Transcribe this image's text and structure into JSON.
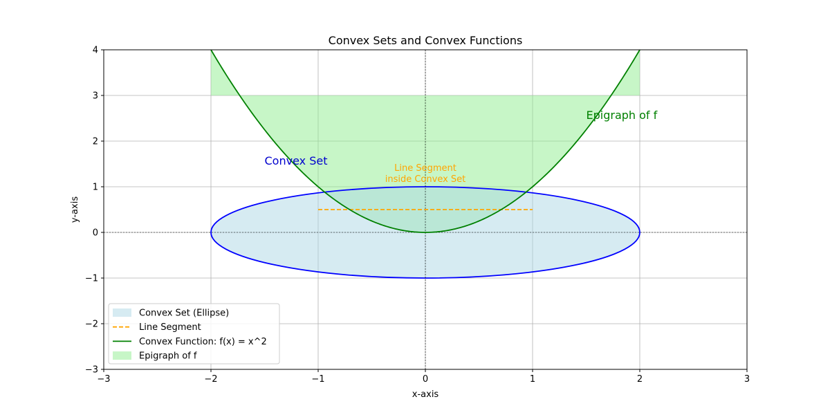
{
  "chart_data": {
    "type": "line",
    "title": "Convex Sets and Convex Functions",
    "xlabel": "x-axis",
    "ylabel": "y-axis",
    "xlim": [
      -3,
      3
    ],
    "ylim": [
      -3,
      4
    ],
    "x_ticks": [
      -3,
      -2,
      -1,
      0,
      1,
      2,
      3
    ],
    "x_tick_labels": [
      "−3",
      "−2",
      "−1",
      "0",
      "1",
      "2",
      "3"
    ],
    "y_ticks": [
      -3,
      -2,
      -1,
      0,
      1,
      2,
      3,
      4
    ],
    "y_tick_labels": [
      "−3",
      "−2",
      "−1",
      "0",
      "1",
      "2",
      "3",
      "4"
    ],
    "grid": true,
    "legend_position": "lower-left",
    "reference_lines": {
      "x": 0,
      "y": 0
    },
    "ellipse": {
      "name": "Convex Set (Ellipse)",
      "center": [
        0,
        0
      ],
      "semi_axis_x": 2,
      "semi_axis_y": 1,
      "fill": "#add8e6",
      "edge": "#0000ff"
    },
    "segment": {
      "name": "Line Segment",
      "x": [
        -1,
        1
      ],
      "y": [
        0.5,
        0.5
      ],
      "color": "#ffa500"
    },
    "function": {
      "name": "Convex Function: f(x) = x^2",
      "x_range": [
        -2,
        2
      ],
      "color": "#008000"
    },
    "epigraph": {
      "name": "Epigraph of f",
      "x_range": [
        -2,
        2
      ],
      "upper_y": 3,
      "fill": "#90ee90"
    },
    "annotations": [
      {
        "text": "Convex Set",
        "x": -1.5,
        "y": 1.5,
        "color": "#0000cd"
      },
      {
        "text": "Epigraph of f",
        "x": 1.5,
        "y": 2.5,
        "color": "#008000"
      },
      {
        "text": "Line Segment",
        "x": 0,
        "y": 1.2,
        "color": "#ffa500"
      },
      {
        "text": "inside Convex Set",
        "x": 0,
        "y": 1.2,
        "color": "#ffa500"
      }
    ],
    "legend": [
      {
        "label": "Convex Set (Ellipse)",
        "kind": "patch",
        "color": "#add8e6"
      },
      {
        "label": "Line Segment",
        "kind": "dashed",
        "color": "#ffa500"
      },
      {
        "label": "Convex Function: f(x) = x^2",
        "kind": "line",
        "color": "#008000"
      },
      {
        "label": "Epigraph of f",
        "kind": "patch",
        "color": "#90ee90"
      }
    ]
  }
}
